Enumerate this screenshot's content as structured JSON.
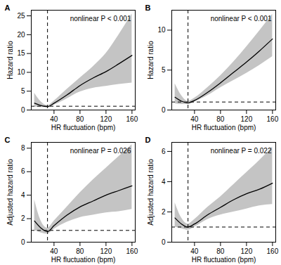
{
  "chart_data": [
    {
      "type": "line",
      "panel": "A",
      "annotation": "nonlinear P < 0.001",
      "x_label": "HR fluctuation (bpm)",
      "y_label": "Hazard ratio",
      "x": [
        10,
        20,
        30,
        40,
        60,
        80,
        100,
        120,
        140,
        160
      ],
      "values": [
        1.8,
        1.2,
        0.9,
        1.8,
        4,
        6.5,
        8.5,
        10.2,
        12.3,
        14.5
      ],
      "lower": [
        0.8,
        0.7,
        0.7,
        1.3,
        3,
        4.8,
        5.8,
        6.3,
        6.8,
        7.2
      ],
      "upper": [
        4.5,
        2.2,
        1.2,
        2.4,
        5.5,
        8.5,
        11.5,
        15,
        20,
        25.5
      ],
      "vline": 30,
      "hline": 1,
      "color": "#000000",
      "grid": false,
      "xlim": [
        5,
        165
      ],
      "xticks": [
        40,
        80,
        120,
        160
      ],
      "ylim": [
        0,
        26.5
      ],
      "yticks": [
        0,
        5,
        10,
        15,
        20,
        25
      ]
    },
    {
      "type": "line",
      "panel": "B",
      "annotation": "nonlinear P < 0.001",
      "x_label": "HR fluctuation (bpm)",
      "y_label": "Hazard ratio",
      "x": [
        10,
        20,
        30,
        40,
        60,
        80,
        100,
        120,
        140,
        160
      ],
      "values": [
        1.6,
        1.1,
        0.9,
        1.2,
        2.2,
        3.4,
        4.7,
        6,
        7.4,
        8.9
      ],
      "lower": [
        0.8,
        0.7,
        0.7,
        1.0,
        1.8,
        2.8,
        3.7,
        4.6,
        5.6,
        6.7
      ],
      "upper": [
        3.3,
        1.8,
        1.1,
        1.5,
        2.8,
        4.3,
        6,
        7.9,
        9.9,
        12
      ],
      "vline": 30,
      "hline": 1,
      "color": "#000000",
      "grid": false,
      "xlim": [
        5,
        165
      ],
      "xticks": [
        40,
        80,
        120,
        160
      ],
      "ylim": [
        0,
        12.5
      ],
      "yticks": [
        0,
        5,
        10
      ]
    },
    {
      "type": "line",
      "panel": "C",
      "annotation": "nonlinear P = 0.026",
      "x_label": "HR fluctuation (bpm)",
      "y_label": "Adjusted hazard ratio",
      "x": [
        10,
        20,
        30,
        40,
        60,
        80,
        100,
        120,
        140,
        160
      ],
      "values": [
        1.8,
        1.2,
        0.9,
        1.4,
        2.3,
        3,
        3.5,
        4,
        4.4,
        4.8
      ],
      "lower": [
        1.0,
        0.8,
        0.7,
        1.1,
        1.7,
        2.1,
        2.3,
        2.5,
        2.6,
        2.8
      ],
      "upper": [
        3.6,
        1.8,
        1.2,
        1.8,
        3,
        4.2,
        5.3,
        6.3,
        7.3,
        8.3
      ],
      "vline": 30,
      "hline": 1,
      "color": "#000000",
      "grid": false,
      "xlim": [
        5,
        165
      ],
      "xticks": [
        40,
        80,
        120,
        160
      ],
      "ylim": [
        0,
        8.5
      ],
      "yticks": [
        0,
        2,
        4,
        6,
        8
      ]
    },
    {
      "type": "line",
      "panel": "D",
      "annotation": "nonlinear P = 0.022",
      "x_label": "HR fluctuation (bpm)",
      "y_label": "Adjusted hazard ratio",
      "x": [
        10,
        20,
        30,
        40,
        60,
        80,
        100,
        120,
        140,
        160
      ],
      "values": [
        1.6,
        1.2,
        1.0,
        1.2,
        1.8,
        2.3,
        2.8,
        3.2,
        3.5,
        3.9
      ],
      "lower": [
        1.0,
        0.9,
        0.8,
        1.0,
        1.5,
        1.8,
        2,
        2.2,
        2.4,
        2.5
      ],
      "upper": [
        2.6,
        1.6,
        1.2,
        1.5,
        2.3,
        3,
        3.8,
        4.6,
        5.4,
        6.3
      ],
      "vline": 30,
      "hline": 1,
      "color": "#000000",
      "grid": false,
      "xlim": [
        5,
        165
      ],
      "xticks": [
        40,
        80,
        120,
        160
      ],
      "ylim": [
        0,
        6.6
      ],
      "yticks": [
        0,
        2,
        4,
        6
      ]
    }
  ]
}
